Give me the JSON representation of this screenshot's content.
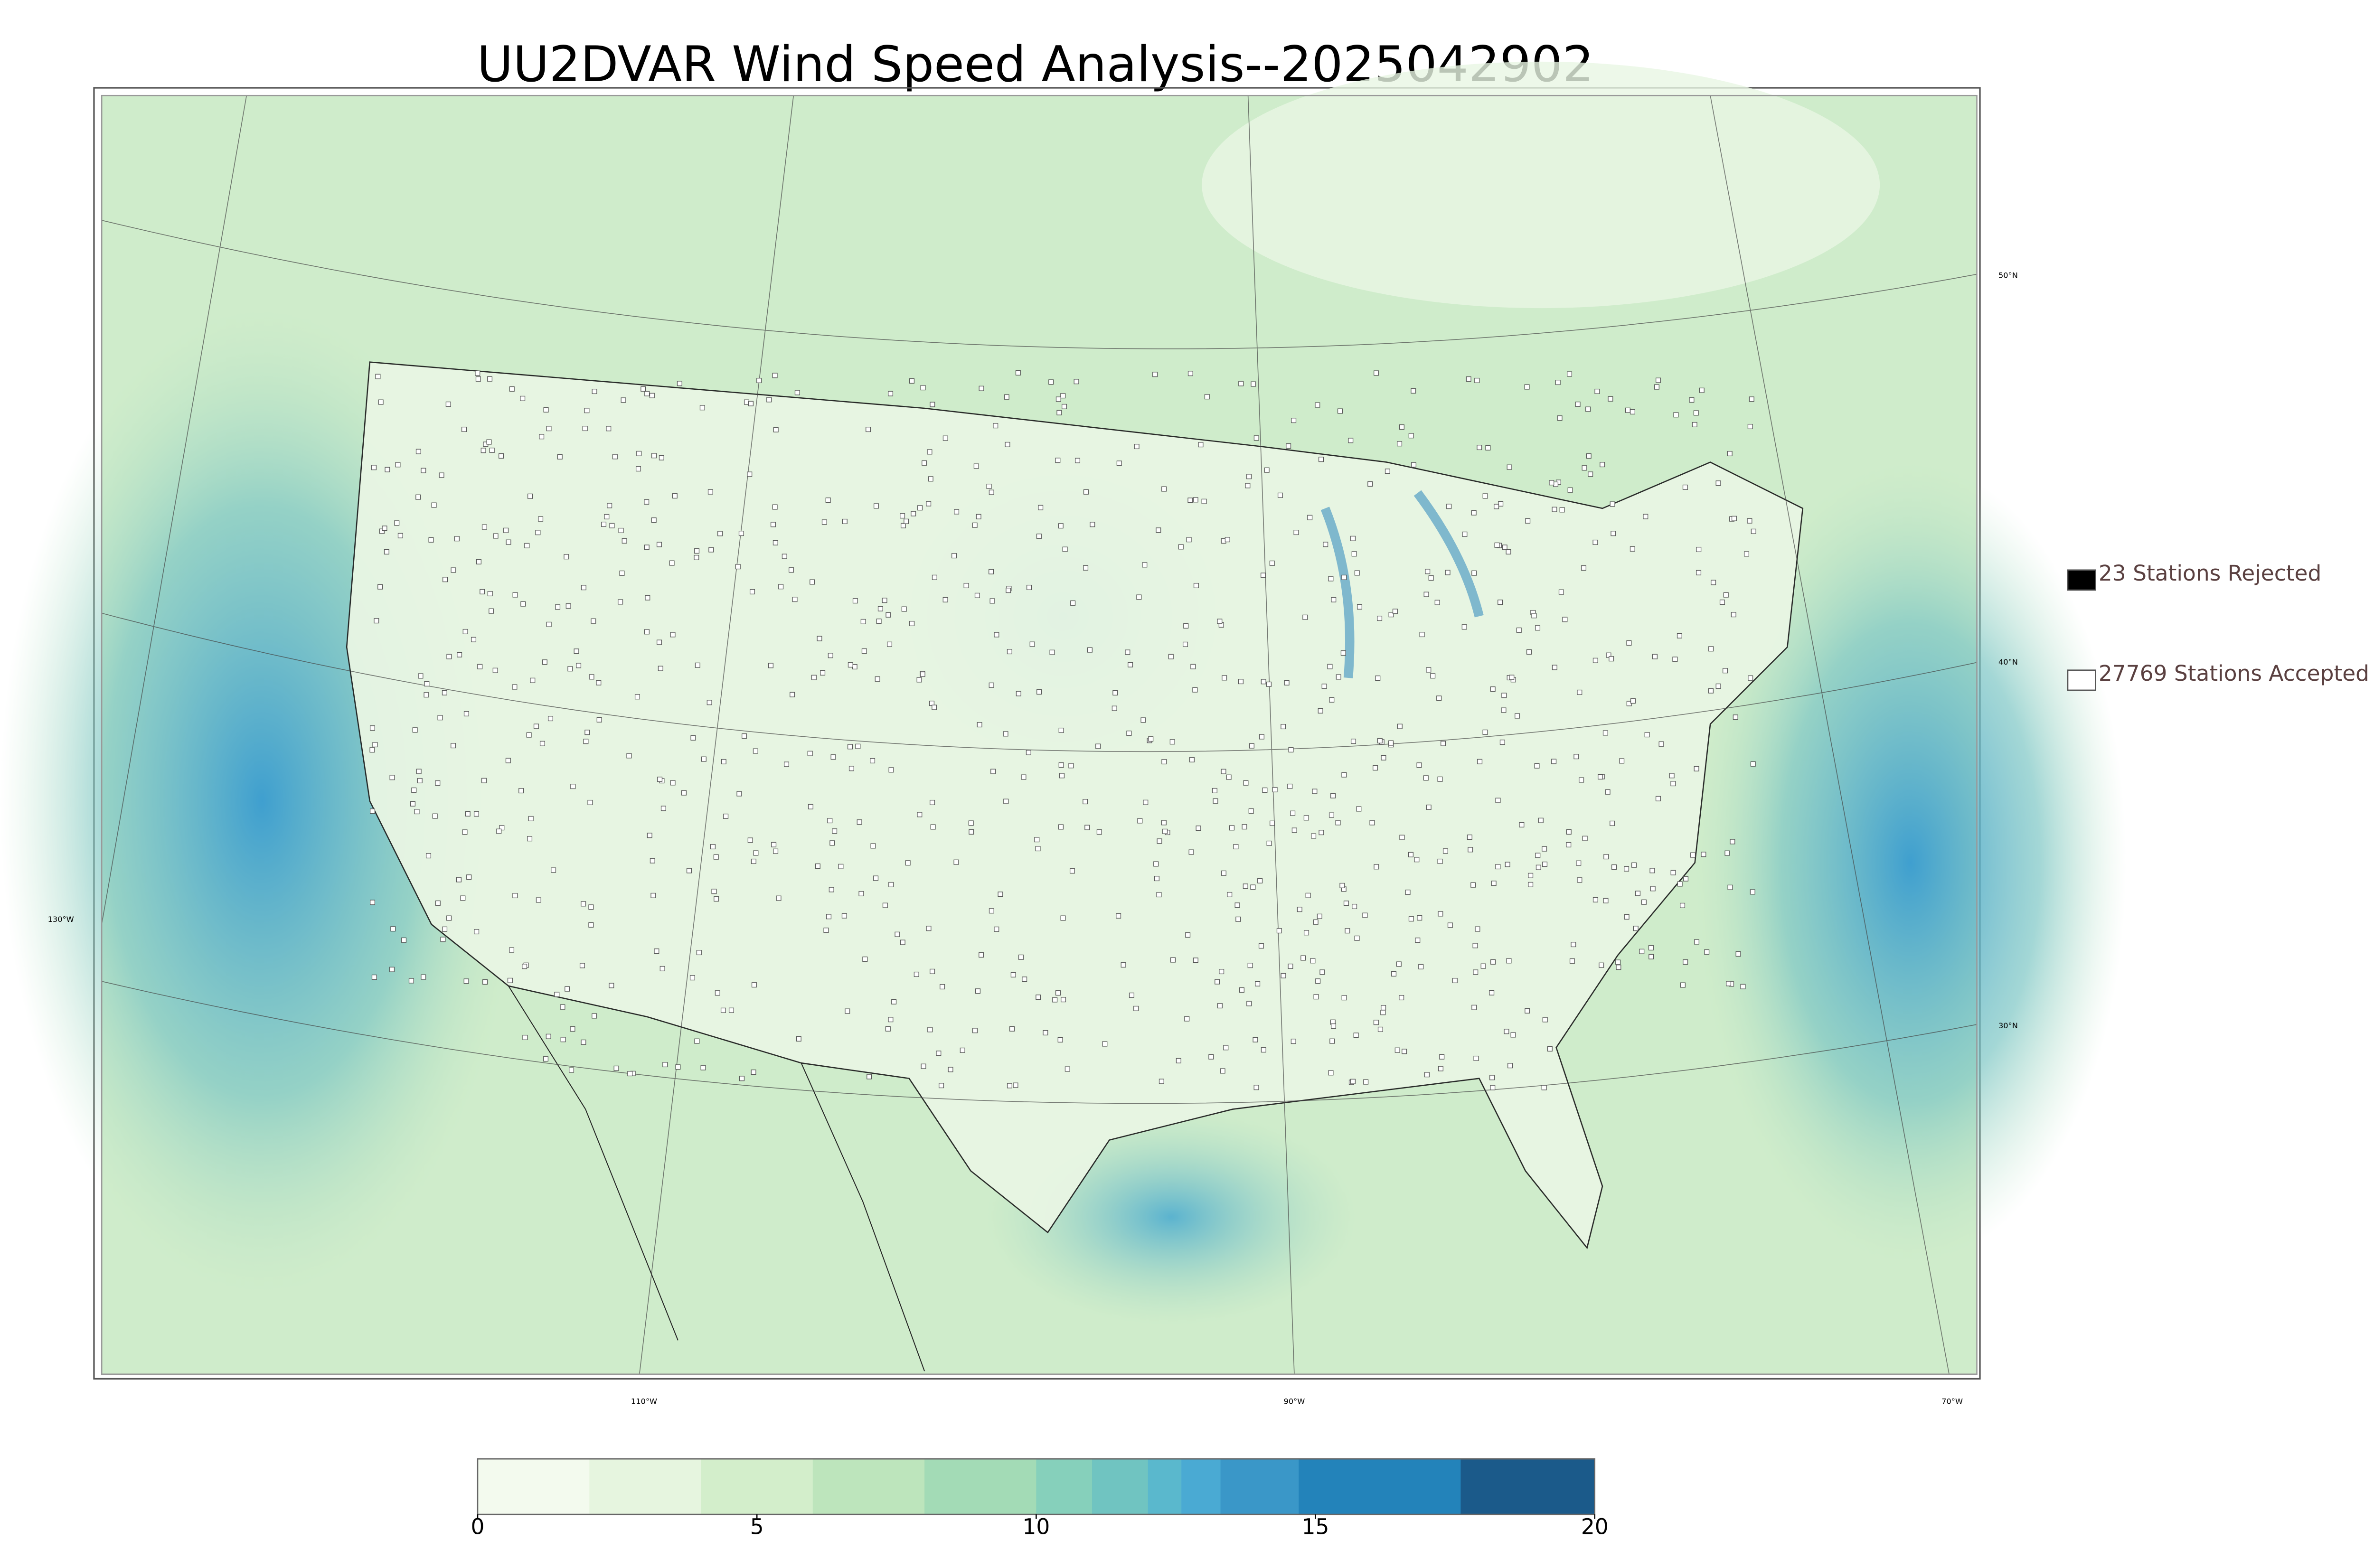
{
  "title": "UU2DVAR Wind Speed Analysis--2025042902",
  "graticule_labels": {
    "lat": [
      "50°N",
      "40°N",
      "30°N"
    ],
    "lon": [
      "130°W",
      "110°W",
      "90°W",
      "70°W"
    ]
  },
  "legend": [
    {
      "label": "23 Stations Rejected",
      "color": "#000000"
    },
    {
      "label": "27769 Stations Accepted",
      "color": "#ffffff"
    }
  ],
  "colorbar": {
    "lim": [
      0,
      20
    ],
    "ticks": [
      0,
      5,
      10,
      15,
      20
    ],
    "levels": [
      0,
      2,
      4,
      6,
      8,
      10,
      11,
      12,
      12.6,
      13.3,
      14.7,
      17.6,
      20
    ],
    "colors": [
      "#f3faee",
      "#e6f5df",
      "#d3eecb",
      "#bde5bc",
      "#a3dbb6",
      "#86d0bb",
      "#70c4c1",
      "#5ab8cd",
      "#4aaad3",
      "#3a97c8",
      "#2383ba",
      "#1b5a8a"
    ]
  }
}
